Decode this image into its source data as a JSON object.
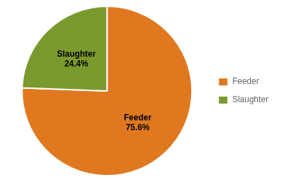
{
  "chart_data": {
    "type": "pie",
    "categories": [
      "Feeder",
      "Slaughter"
    ],
    "values": [
      75.6,
      24.4
    ],
    "colors": [
      "#E07820",
      "#7A9A2E"
    ],
    "data_labels": true,
    "value_labels": [
      "Feeder\n75.6%",
      "Slaughter\n24.4%"
    ],
    "legend": "right"
  }
}
